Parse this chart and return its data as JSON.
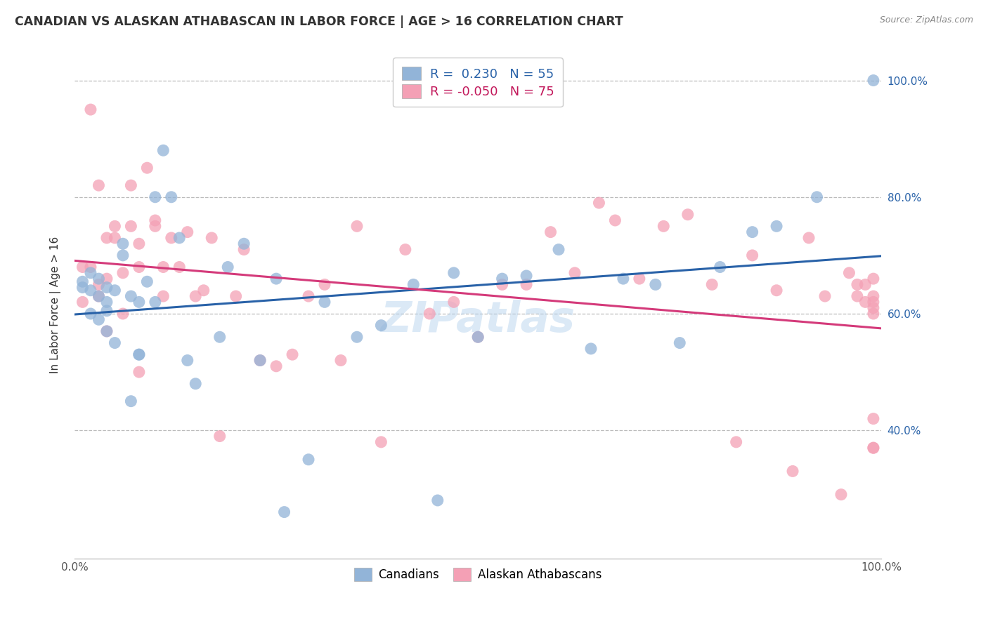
{
  "title": "CANADIAN VS ALASKAN ATHABASCAN IN LABOR FORCE | AGE > 16 CORRELATION CHART",
  "source_text": "Source: ZipAtlas.com",
  "ylabel": "In Labor Force | Age > 16",
  "xlim": [
    0.0,
    1.0
  ],
  "ylim": [
    0.18,
    1.05
  ],
  "xtick_positions": [
    0.0,
    1.0
  ],
  "xtick_labels": [
    "0.0%",
    "100.0%"
  ],
  "ytick_positions": [
    0.4,
    0.6,
    0.8,
    1.0
  ],
  "ytick_labels": [
    "40.0%",
    "60.0%",
    "80.0%",
    "100.0%"
  ],
  "grid_lines": [
    0.4,
    0.6,
    0.8,
    1.0
  ],
  "blue_color": "#92b4d8",
  "pink_color": "#f4a0b5",
  "blue_line_color": "#2962a8",
  "pink_line_color": "#d43a7a",
  "blue_R": 0.23,
  "pink_R": -0.05,
  "blue_N": 55,
  "pink_N": 75,
  "watermark": "ZIPatlas",
  "legend1_label": "R =  0.230   N = 55",
  "legend2_label": "R = -0.050   N = 75",
  "legend1_textcolor": "#2962a8",
  "legend2_textcolor": "#c2185b",
  "series1_label": "Canadians",
  "series2_label": "Alaskan Athabascans",
  "canadian_x": [
    0.01,
    0.01,
    0.02,
    0.02,
    0.02,
    0.03,
    0.03,
    0.03,
    0.04,
    0.04,
    0.04,
    0.04,
    0.05,
    0.05,
    0.06,
    0.06,
    0.07,
    0.07,
    0.08,
    0.08,
    0.08,
    0.09,
    0.1,
    0.1,
    0.11,
    0.12,
    0.13,
    0.14,
    0.15,
    0.18,
    0.19,
    0.21,
    0.23,
    0.25,
    0.26,
    0.29,
    0.31,
    0.35,
    0.38,
    0.42,
    0.45,
    0.47,
    0.5,
    0.53,
    0.56,
    0.6,
    0.64,
    0.68,
    0.72,
    0.75,
    0.8,
    0.84,
    0.87,
    0.92,
    0.99
  ],
  "canadian_y": [
    0.655,
    0.645,
    0.67,
    0.64,
    0.6,
    0.66,
    0.63,
    0.59,
    0.645,
    0.62,
    0.605,
    0.57,
    0.64,
    0.55,
    0.72,
    0.7,
    0.63,
    0.45,
    0.53,
    0.62,
    0.53,
    0.655,
    0.62,
    0.8,
    0.88,
    0.8,
    0.73,
    0.52,
    0.48,
    0.56,
    0.68,
    0.72,
    0.52,
    0.66,
    0.26,
    0.35,
    0.62,
    0.56,
    0.58,
    0.65,
    0.28,
    0.67,
    0.56,
    0.66,
    0.665,
    0.71,
    0.54,
    0.66,
    0.65,
    0.55,
    0.68,
    0.74,
    0.75,
    0.8,
    1.0
  ],
  "alaskan_x": [
    0.01,
    0.01,
    0.02,
    0.02,
    0.03,
    0.03,
    0.03,
    0.04,
    0.04,
    0.04,
    0.05,
    0.05,
    0.06,
    0.06,
    0.07,
    0.07,
    0.08,
    0.08,
    0.08,
    0.09,
    0.1,
    0.1,
    0.11,
    0.11,
    0.12,
    0.13,
    0.14,
    0.15,
    0.16,
    0.17,
    0.18,
    0.2,
    0.21,
    0.23,
    0.25,
    0.27,
    0.29,
    0.31,
    0.33,
    0.35,
    0.38,
    0.41,
    0.44,
    0.47,
    0.5,
    0.53,
    0.56,
    0.59,
    0.62,
    0.65,
    0.67,
    0.7,
    0.73,
    0.76,
    0.79,
    0.82,
    0.84,
    0.87,
    0.89,
    0.91,
    0.93,
    0.95,
    0.96,
    0.97,
    0.97,
    0.98,
    0.98,
    0.99,
    0.99,
    0.99,
    0.99,
    0.99,
    0.99,
    0.99,
    0.99
  ],
  "alaskan_y": [
    0.68,
    0.62,
    0.68,
    0.95,
    0.82,
    0.65,
    0.63,
    0.66,
    0.73,
    0.57,
    0.75,
    0.73,
    0.67,
    0.6,
    0.82,
    0.75,
    0.68,
    0.5,
    0.72,
    0.85,
    0.76,
    0.75,
    0.63,
    0.68,
    0.73,
    0.68,
    0.74,
    0.63,
    0.64,
    0.73,
    0.39,
    0.63,
    0.71,
    0.52,
    0.51,
    0.53,
    0.63,
    0.65,
    0.52,
    0.75,
    0.38,
    0.71,
    0.6,
    0.62,
    0.56,
    0.65,
    0.65,
    0.74,
    0.67,
    0.79,
    0.76,
    0.66,
    0.75,
    0.77,
    0.65,
    0.38,
    0.7,
    0.64,
    0.33,
    0.73,
    0.63,
    0.29,
    0.67,
    0.65,
    0.63,
    0.65,
    0.62,
    0.37,
    0.42,
    0.61,
    0.63,
    0.66,
    0.37,
    0.62,
    0.6
  ],
  "figsize": [
    14.06,
    8.92
  ],
  "dpi": 100
}
